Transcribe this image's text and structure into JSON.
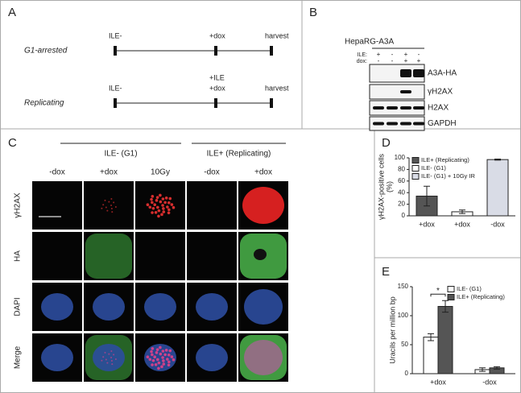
{
  "panels": [
    "A",
    "B",
    "C",
    "D",
    "E"
  ],
  "timeline": {
    "rows": [
      {
        "label": "G1-arrested",
        "events": [
          [
            "ILE-"
          ],
          [
            "+dox"
          ],
          [
            "harvest"
          ]
        ]
      },
      {
        "label": "Replicating",
        "events": [
          [
            "ILE-"
          ],
          [
            "+ILE",
            "+dox"
          ],
          [
            "harvest"
          ]
        ]
      }
    ]
  },
  "blot": {
    "title": "HepaRG-A3A",
    "conditions": [
      {
        "label": "ILE:",
        "values": [
          "+",
          "-",
          "+",
          "-"
        ]
      },
      {
        "label": "dox:",
        "values": [
          "-",
          "-",
          "+",
          "+"
        ]
      }
    ],
    "bands": [
      "A3A-HA",
      "γH2AX",
      "H2AX",
      "GAPDH"
    ]
  },
  "microscopy": {
    "groups": [
      "ILE- (G1)",
      "ILE+ (Replicating)"
    ],
    "columns": [
      "-dox",
      "+dox",
      "10Gy",
      "-dox",
      "+dox"
    ],
    "rows": [
      "γH2AX",
      "HA",
      "DAPI",
      "Merge"
    ]
  },
  "chart_data": [
    {
      "type": "bar",
      "ylabel": [
        "γH2AX-positive cells",
        "(%)"
      ],
      "categories": [
        "+dox",
        "+dox",
        "-dox"
      ],
      "series": [
        {
          "name": "ILE+ (Replicating)",
          "color": "#555555",
          "values": [
            34,
            null,
            null
          ],
          "errors": [
            17,
            null,
            null
          ]
        },
        {
          "name": "ILE- (G1)",
          "color": "#ffffff",
          "values": [
            null,
            7,
            null
          ],
          "errors": [
            null,
            3,
            null
          ]
        },
        {
          "name": "ILE- (G1) + 10Gy IR",
          "color": "#d9dce6",
          "values": [
            null,
            null,
            97
          ],
          "errors": [
            null,
            null,
            1
          ]
        }
      ],
      "ylim": [
        0,
        100
      ],
      "yticks": [
        0,
        20,
        40,
        60,
        80,
        100
      ],
      "legend": "upper left"
    },
    {
      "type": "bar",
      "ylabel": [
        "Uracils per million bp"
      ],
      "categories": [
        "+dox",
        "-dox"
      ],
      "series": [
        {
          "name": "ILE-  (G1)",
          "color": "#ffffff",
          "values": [
            63,
            7
          ],
          "errors": [
            6,
            3
          ]
        },
        {
          "name": "ILE+ (Replicating)",
          "color": "#555555",
          "values": [
            116,
            10
          ],
          "errors": [
            10,
            2
          ]
        }
      ],
      "ylim": [
        0,
        150
      ],
      "yticks": [
        0,
        50,
        100,
        150
      ],
      "legend": "upper right",
      "annotations": [
        "*"
      ]
    }
  ]
}
